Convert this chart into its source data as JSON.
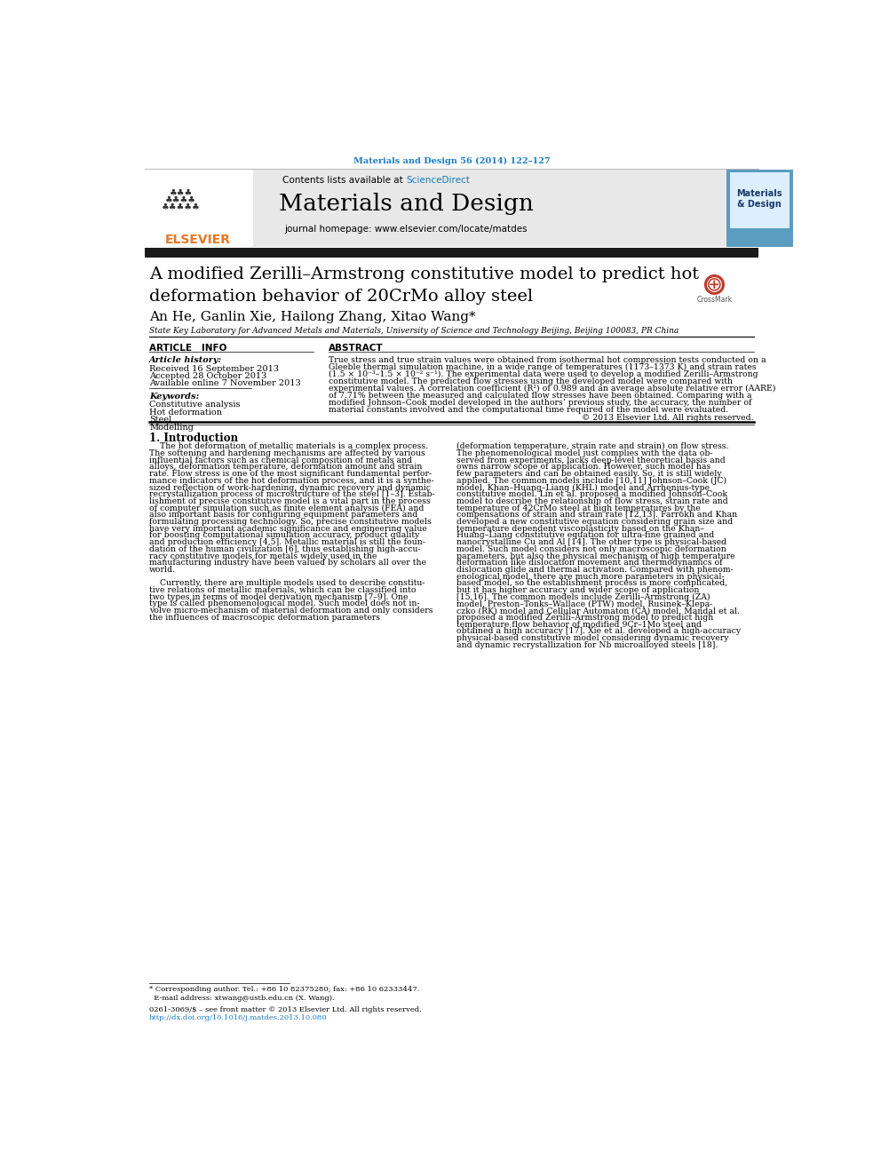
{
  "journal_ref": "Materials and Design 56 (2014) 122–127",
  "journal_ref_color": "#1a7abf",
  "header_bg": "#e8e8e8",
  "contents_text": "Contents lists available at ",
  "sciencedirect_text": "ScienceDirect",
  "sciencedirect_color": "#1a7abf",
  "journal_name": "Materials and Design",
  "journal_homepage": "journal homepage: www.elsevier.com/locate/matdes",
  "black_bar_color": "#1a1a1a",
  "title": "A modified Zerilli–Armstrong constitutive model to predict hot\ndeformation behavior of 20CrMo alloy steel",
  "authors": "An He, Ganlin Xie, Hailong Zhang, Xitao Wang",
  "affiliation": "State Key Laboratory for Advanced Metals and Materials, University of Science and Technology Beijing, Beijing 100083, PR China",
  "article_info_header": "ARTICLE   INFO",
  "abstract_header": "ABSTRACT",
  "article_history_label": "Article history:",
  "received": "Received 16 September 2013",
  "accepted": "Accepted 28 October 2013",
  "available": "Available online 7 November 2013",
  "keywords_label": "Keywords:",
  "keywords": [
    "Constitutive analysis",
    "Hot deformation",
    "Steel",
    "Modelling"
  ],
  "abstract_lines": [
    "True stress and true strain values were obtained from isothermal hot compression tests conducted on a",
    "Gleeble thermal simulation machine, in a wide range of temperatures (1173–1373 K) and strain rates",
    "(1.5 × 10⁻³–1.5 × 10⁻² s⁻¹). The experimental data were used to develop a modified Zerilli–Armstrong",
    "constitutive model. The predicted flow stresses using the developed model were compared with",
    "experimental values. A correlation coefficient (R²) of 0.989 and an average absolute relative error (AARE)",
    "of 7.71% between the measured and calculated flow stresses have been obtained. Comparing with a",
    "modified Johnson–Cook model developed in the authors’ previous study, the accuracy, the number of",
    "material constants involved and the computational time required of the model were evaluated."
  ],
  "copyright": "© 2013 Elsevier Ltd. All rights reserved.",
  "section1_title": "1. Introduction",
  "left_intro_lines": [
    "    The hot deformation of metallic materials is a complex process.",
    "The softening and hardening mechanisms are affected by various",
    "influential factors such as chemical composition of metals and",
    "alloys, deformation temperature, deformation amount and strain",
    "rate. Flow stress is one of the most significant fundamental perfor-",
    "mance indicators of the hot deformation process, and it is a synthe-",
    "sized reflection of work-hardening, dynamic recovery and dynamic",
    "recrystallization process of microstructure of the steel [1–3]. Estab-",
    "lishment of precise constitutive model is a vital part in the process",
    "of computer simulation such as finite element analysis (FEA) and",
    "also important basis for configuring equipment parameters and",
    "formulating processing technology. So, precise constitutive models",
    "have very important academic significance and engineering value",
    "for boosting computational simulation accuracy, product quality",
    "and production efficiency [4,5]. Metallic material is still the foun-",
    "dation of the human civilization [6], thus establishing high-accu-",
    "racy constitutive models for metals widely used in the",
    "manufacturing industry have been valued by scholars all over the",
    "world.",
    "",
    "    Currently, there are multiple models used to describe constitu-",
    "tive relations of metallic materials, which can be classified into",
    "two types in terms of model derivation mechanism [7–9]. One",
    "type is called phenomenological model. Such model does not in-",
    "volve micro-mechanism of material deformation and only considers",
    "the influences of macroscopic deformation parameters"
  ],
  "right_intro_lines": [
    "(deformation temperature, strain rate and strain) on flow stress.",
    "The phenomenological model just complies with the data ob-",
    "served from experiments, lacks deep-level theoretical basis and",
    "owns narrow scope of application. However, such model has",
    "few parameters and can be obtained easily. So, it is still widely",
    "applied. The common models include [10,11] Johnson–Cook (JC)",
    "model, Khan–Huang–Liang (KHL) model and Arrhenius-type",
    "constitutive model. Lin et al. proposed a modified Johnson–Cook",
    "model to describe the relationship of flow stress, strain rate and",
    "temperature of 42CrMo steel at high temperatures by the",
    "compensations of strain and strain rate [12,13]. Farrokh and Khan",
    "developed a new constitutive equation considering grain size and",
    "temperature dependent viscoplasticity based on the Khan–",
    "Huang–Liang constitutive equation for ultra-fine grained and",
    "nanocrystalline Cu and Al [14]. The other type is physical-based",
    "model. Such model considers not only macroscopic deformation",
    "parameters, but also the physical mechanism of high temperature",
    "deformation like dislocation movement and thermodynamics of",
    "dislocation glide and thermal activation. Compared with phenom-",
    "enological model, there are much more parameters in physical-",
    "based model, so the establishment process is more complicated,",
    "but it has higher accuracy and wider scope of application",
    "[15,16]. The common models include Zerilli–Armstrong (ZA)",
    "model, Preston–Tonks–Wallace (PTW) model, Rusinek–Klepa-",
    "czko (RK) model and Cellular Automaton (CA) model. Mandal et al.",
    "proposed a modified Zerilli–Armstrong model to predict high",
    "temperature flow behavior of modified 9Cr–1Mo steel and",
    "obtained a high accuracy [17]. Xie et al. developed a high-accuracy",
    "physical-based constitutive model considering dynamic recovery",
    "and dynamic recrystallization for Nb microalloyed steels [18]."
  ],
  "footnote1": "* Corresponding author. Tel.: +86 10 82375280; fax: +86 10 62333447.",
  "footnote2": "  E-mail address: xtwang@ustb.edu.cn (X. Wang).",
  "footer1": "0261-3069/$ – see front matter © 2013 Elsevier Ltd. All rights reserved.",
  "footer2": "http://dx.doi.org/10.1016/j.matdes.2013.10.080",
  "footer2_color": "#1a7abf",
  "text_color": "#000000",
  "link_color": "#1a7abf",
  "elsevier_orange": "#e87722",
  "mag_cover_color": "#5b9dc0",
  "header_line_color": "#555555"
}
